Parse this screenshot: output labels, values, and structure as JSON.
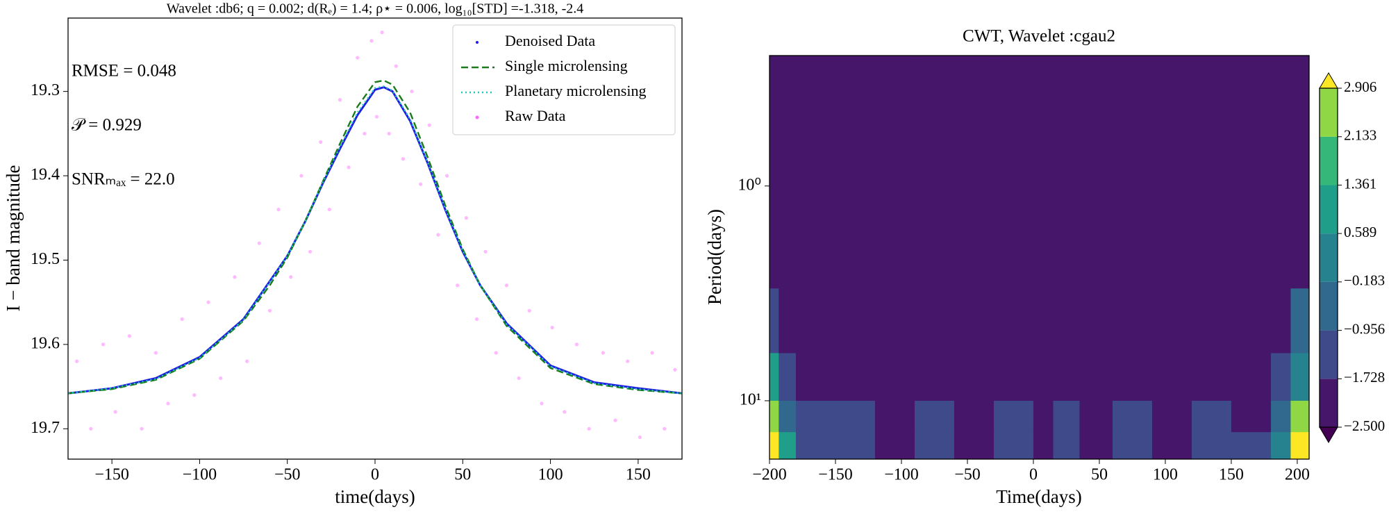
{
  "chart_data": [
    {
      "type": "line",
      "title": "Wavelet :db6;  q =  0.002;  d(Rₑ) =  1.4;  ρ⋆ =  0.006,  log₁₀[STD] =-1.318, -2.4",
      "xlabel": "time(days)",
      "ylabel": "I − band magnitude",
      "annotations": [
        "RMSE =  0.048",
        "𝒫 =  0.929",
        "SNRₘₐₓ =  22.0"
      ],
      "legend": "upper right",
      "x": [
        -175,
        -150,
        -125,
        -100,
        -75,
        -60,
        -50,
        -40,
        -30,
        -20,
        -10,
        0,
        5,
        10,
        20,
        30,
        40,
        50,
        60,
        75,
        100,
        125,
        150,
        175
      ],
      "series": [
        {
          "name": "Denoised Data",
          "color": "#1f1fe0",
          "style": "solid",
          "values": [
            19.658,
            19.652,
            19.64,
            19.615,
            19.57,
            19.525,
            19.495,
            19.455,
            19.41,
            19.368,
            19.328,
            19.298,
            19.295,
            19.3,
            19.335,
            19.385,
            19.44,
            19.49,
            19.53,
            19.575,
            19.625,
            19.645,
            19.652,
            19.658
          ]
        },
        {
          "name": "Single microlensing",
          "color": "#1a7a1a",
          "style": "dashed",
          "values": [
            19.658,
            19.653,
            19.642,
            19.617,
            19.572,
            19.53,
            19.497,
            19.455,
            19.408,
            19.362,
            19.318,
            19.289,
            19.287,
            19.292,
            19.325,
            19.378,
            19.435,
            19.487,
            19.53,
            19.578,
            19.628,
            19.647,
            19.654,
            19.658
          ]
        },
        {
          "name": "Planetary microlensing",
          "color": "#20c8c0",
          "style": "dotted",
          "values": [
            19.658,
            19.652,
            19.641,
            19.616,
            19.571,
            19.526,
            19.495,
            19.455,
            19.409,
            19.366,
            19.325,
            19.296,
            19.294,
            19.299,
            19.333,
            19.384,
            19.439,
            19.489,
            19.53,
            19.576,
            19.626,
            19.646,
            19.653,
            19.658
          ]
        },
        {
          "name": "Raw Data",
          "color": "#ff66ff",
          "style": "scatter",
          "x": [
            -170,
            -162,
            -155,
            -148,
            -140,
            -133,
            -125,
            -118,
            -110,
            -103,
            -95,
            -88,
            -80,
            -73,
            -66,
            -60,
            -55,
            -48,
            -42,
            -37,
            -31,
            -26,
            -20,
            -15,
            -10,
            -6,
            -2,
            1,
            4,
            8,
            12,
            16,
            21,
            26,
            31,
            36,
            41,
            47,
            52,
            58,
            63,
            69,
            75,
            82,
            88,
            95,
            101,
            108,
            115,
            122,
            130,
            137,
            144,
            151,
            158,
            165,
            171
          ],
          "values": [
            19.62,
            19.7,
            19.6,
            19.68,
            19.59,
            19.7,
            19.61,
            19.67,
            19.57,
            19.66,
            19.55,
            19.64,
            19.52,
            19.62,
            19.48,
            19.56,
            19.44,
            19.52,
            19.4,
            19.49,
            19.36,
            19.44,
            19.31,
            19.39,
            19.26,
            19.35,
            19.24,
            19.33,
            19.23,
            19.35,
            19.27,
            19.38,
            19.3,
            19.41,
            19.34,
            19.47,
            19.4,
            19.53,
            19.45,
            19.57,
            19.49,
            19.61,
            19.53,
            19.64,
            19.56,
            19.67,
            19.58,
            19.68,
            19.6,
            19.7,
            19.61,
            19.69,
            19.62,
            19.71,
            19.61,
            19.7,
            19.63
          ]
        }
      ],
      "xlim": [
        -175,
        175
      ],
      "xticks": [
        {
          "value": -150,
          "label": "−150"
        },
        {
          "value": -100,
          "label": "−100"
        },
        {
          "value": -50,
          "label": "−50"
        },
        0,
        50,
        100,
        150
      ],
      "ylim": [
        19.736,
        19.213
      ],
      "yticks": [
        19.3,
        19.4,
        19.5,
        19.6,
        19.7
      ]
    },
    {
      "type": "contour",
      "title": "CWT,  Wavelet :cgau2",
      "xlabel": "Time(days)",
      "ylabel": "Period(days)",
      "xlim": [
        -200,
        209
      ],
      "xticks": [
        {
          "value": -200,
          "label": "−200"
        },
        {
          "value": -150,
          "label": "−150"
        },
        {
          "value": -100,
          "label": "−100"
        },
        {
          "value": -50,
          "label": "−50"
        },
        0,
        50,
        100,
        150,
        200
      ],
      "ylim": [
        18.7,
        0.247
      ],
      "log_y": true,
      "yticks": [
        {
          "value": 1,
          "label": "10⁰"
        },
        {
          "value": 10,
          "label": "10¹"
        }
      ],
      "x_edges": [
        -200,
        -193,
        -180,
        -150,
        -120,
        -90,
        -60,
        -30,
        0,
        15,
        35,
        60,
        90,
        120,
        150,
        180,
        195,
        209
      ],
      "y_edges": [
        0.247,
        1,
        3,
        6,
        10,
        14,
        18.7
      ],
      "z": [
        [
          -2.2,
          -2.2,
          -2.2,
          -2.2,
          -2.2,
          -2.2,
          -2.2,
          -2.2,
          -2.2,
          -2.2,
          -2.2,
          -2.2,
          -2.2,
          -2.2,
          -2.2,
          -2.2,
          -2.2
        ],
        [
          -1.8,
          -2.2,
          -2.2,
          -2.2,
          -2.2,
          -2.2,
          -2.2,
          -2.2,
          -2.2,
          -2.2,
          -2.2,
          -2.2,
          -2.2,
          -2.2,
          -2.2,
          -2.2,
          -1.9
        ],
        [
          -1.0,
          -1.9,
          -2.1,
          -2.1,
          -2.1,
          -2.1,
          -2.1,
          -2.1,
          -2.1,
          -2.1,
          -2.1,
          -2.1,
          -2.1,
          -2.1,
          -2.1,
          -2.0,
          -0.9
        ],
        [
          0.8,
          -1.5,
          -2.0,
          -2.0,
          -2.0,
          -2.0,
          -2.0,
          -2.0,
          -2.0,
          -1.9,
          -2.0,
          -2.0,
          -2.0,
          -2.0,
          -2.0,
          -1.6,
          0.5
        ],
        [
          2.5,
          -0.5,
          -1.6,
          -1.6,
          -1.9,
          -1.6,
          -1.9,
          -1.6,
          -1.9,
          -1.2,
          -1.9,
          -1.6,
          -1.9,
          -1.6,
          -1.9,
          -0.8,
          2.3
        ],
        [
          3.0,
          1.0,
          -1.5,
          -1.6,
          -1.8,
          -1.6,
          -1.8,
          -1.6,
          -1.8,
          -1.0,
          -1.8,
          -1.6,
          -1.8,
          -1.6,
          -1.7,
          0.2,
          3.0
        ]
      ],
      "colorbar": {
        "levels": [
          {
            "value": -2.5,
            "label": "−2.500"
          },
          {
            "value": -1.728,
            "label": "−1.728"
          },
          {
            "value": -0.956,
            "label": "−0.956"
          },
          {
            "value": -0.183,
            "label": "−0.183"
          },
          0.589,
          1.361,
          2.133,
          2.906
        ],
        "colors": [
          "#440154",
          "#46166b",
          "#3e4a89",
          "#31688e",
          "#26828e",
          "#1f9e89",
          "#35b779",
          "#8fd744",
          "#fde725"
        ],
        "extend": "both"
      }
    }
  ]
}
